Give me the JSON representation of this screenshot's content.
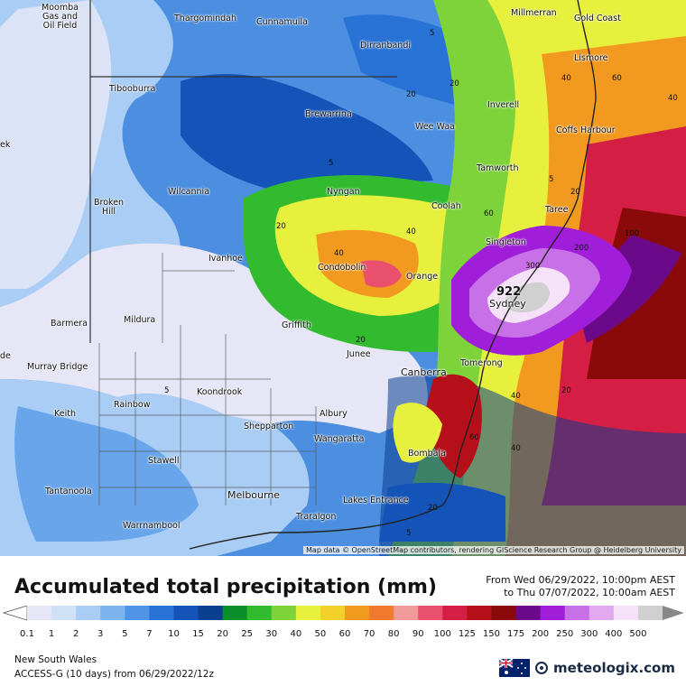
{
  "title": "Accumulated total precipitation (mm)",
  "valid_from": "From Wed 06/29/2022, 10:00pm AEST",
  "valid_to": "to Thu 07/07/2022, 10:00am AEST",
  "region": "New South Wales",
  "model_run": "ACCESS-G (10 days)  from  06/29/2022/12z",
  "brand": "meteologix.com",
  "attribution": "Map data © OpenStreetMap contributors, rendering GIScience Research Group @ Heidelberg University",
  "max_value": "922",
  "legend": {
    "labels": [
      "0.1",
      "1",
      "2",
      "3",
      "5",
      "7",
      "10",
      "15",
      "20",
      "25",
      "30",
      "40",
      "50",
      "60",
      "70",
      "80",
      "90",
      "100",
      "125",
      "150",
      "175",
      "200",
      "250",
      "300",
      "400",
      "500"
    ],
    "colors": [
      "#e6e6f7",
      "#cfe1f7",
      "#a9cdf4",
      "#7db4ef",
      "#4f94e6",
      "#2a73d6",
      "#1453b8",
      "#0a3e8f",
      "#0b8f2a",
      "#33bb2f",
      "#7ed23a",
      "#e6f03d",
      "#f2d22a",
      "#f29a1f",
      "#f27a2e",
      "#f09a9a",
      "#e8506e",
      "#d51e44",
      "#b5101a",
      "#8a0a0a",
      "#6a0a8a",
      "#a01ed9",
      "#c870e8",
      "#e2a8f0",
      "#f5e2f8",
      "#d0d0d0"
    ]
  },
  "places": [
    {
      "name": "Moomba\nGas and\nOil Field"
    },
    {
      "name": "Thargomindah"
    },
    {
      "name": "Cunnamulla"
    },
    {
      "name": "Dirranbandi"
    },
    {
      "name": "Millmerran"
    },
    {
      "name": "Gold Coast"
    },
    {
      "name": "Lismore"
    },
    {
      "name": "Tibooburra"
    },
    {
      "name": "Brewarrina"
    },
    {
      "name": "Inverell"
    },
    {
      "name": "Wee Waa"
    },
    {
      "name": "Coffs Harbour"
    },
    {
      "name": "Tamworth"
    },
    {
      "name": "Broken\nHill"
    },
    {
      "name": "Wilcannia"
    },
    {
      "name": "Nyngan"
    },
    {
      "name": "Coolah"
    },
    {
      "name": "Taree"
    },
    {
      "name": "Singleton"
    },
    {
      "name": "Ivanhoe"
    },
    {
      "name": "Condobolin"
    },
    {
      "name": "Orange"
    },
    {
      "name": "Sydney"
    },
    {
      "name": "Barmera"
    },
    {
      "name": "Mildura"
    },
    {
      "name": "Griffith"
    },
    {
      "name": "Murray Bridge"
    },
    {
      "name": "Junee"
    },
    {
      "name": "Canberra"
    },
    {
      "name": "Tomerong"
    },
    {
      "name": "Rainbow"
    },
    {
      "name": "Koondrook"
    },
    {
      "name": "Keith"
    },
    {
      "name": "Shepparton"
    },
    {
      "name": "Albury"
    },
    {
      "name": "Wangaratta"
    },
    {
      "name": "Stawell"
    },
    {
      "name": "Bombala"
    },
    {
      "name": "Tantanoola"
    },
    {
      "name": "Melbourne"
    },
    {
      "name": "Lakes Entrance"
    },
    {
      "name": "Warrnambool"
    },
    {
      "name": "Traralgon"
    },
    {
      "name": "ek"
    },
    {
      "name": "de"
    }
  ],
  "contour_labels": [
    "5",
    "20",
    "20",
    "5",
    "20",
    "40",
    "60",
    "40",
    "40",
    "60",
    "100",
    "200",
    "300",
    "20",
    "20",
    "40",
    "40",
    "20",
    "60",
    "40",
    "5",
    "20",
    "5",
    "5"
  ]
}
